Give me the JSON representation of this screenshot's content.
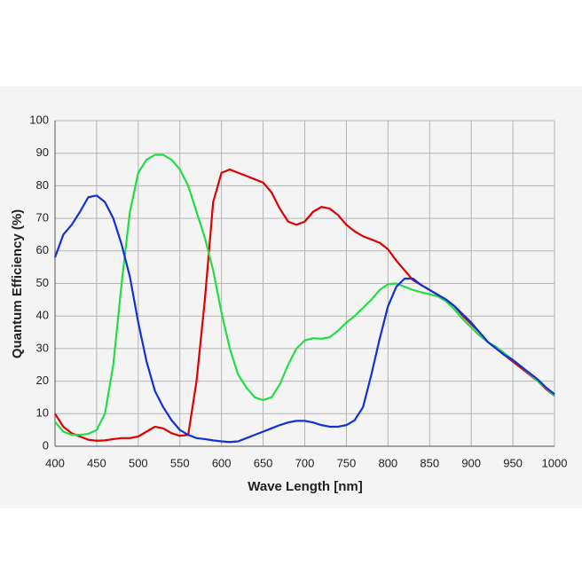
{
  "chart_data": {
    "type": "line",
    "xlabel": "Wave Length [nm]",
    "ylabel": "Quantum Efficiency (%)",
    "x": [
      400,
      410,
      420,
      430,
      440,
      450,
      460,
      470,
      480,
      490,
      500,
      510,
      520,
      530,
      540,
      550,
      560,
      570,
      580,
      590,
      600,
      610,
      620,
      630,
      640,
      650,
      660,
      670,
      680,
      690,
      700,
      710,
      720,
      730,
      740,
      750,
      760,
      770,
      780,
      790,
      800,
      810,
      820,
      830,
      840,
      850,
      860,
      870,
      880,
      890,
      900,
      910,
      920,
      930,
      940,
      950,
      960,
      970,
      980,
      990,
      1000
    ],
    "series": [
      {
        "color": "#e00000",
        "values": [
          10,
          6,
          4,
          3,
          2,
          1.7,
          1.8,
          2.2,
          2.5,
          2.5,
          3,
          4.5,
          6,
          5.5,
          4,
          3.2,
          3.5,
          20,
          45,
          75,
          84,
          85,
          84,
          83,
          82,
          81,
          78,
          73,
          69,
          68,
          69,
          72,
          73.5,
          73,
          71,
          68,
          66,
          64.5,
          63.5,
          62.5,
          60.5,
          57,
          54,
          51,
          49.5,
          48,
          46.5,
          45,
          43,
          40,
          37.5,
          35,
          32,
          30,
          28,
          26,
          24,
          22,
          20,
          17.5,
          15.5
        ]
      },
      {
        "color": "#22dd44",
        "values": [
          7.5,
          4.5,
          3.5,
          3.5,
          3.8,
          5,
          10,
          25,
          50,
          72,
          84,
          88,
          89.5,
          89.5,
          88,
          85,
          80,
          72,
          64,
          54,
          41,
          30,
          22,
          18,
          15,
          14.2,
          15,
          19,
          25,
          30,
          32.5,
          33.2,
          33,
          33.5,
          35.5,
          38,
          40,
          42.5,
          45,
          48,
          49.8,
          50,
          49,
          48,
          47.3,
          46.7,
          46,
          44.5,
          42,
          39,
          36.5,
          34,
          32,
          30.5,
          28.5,
          26.5,
          24.5,
          22.3,
          20,
          17.8,
          15.5
        ]
      },
      {
        "color": "#1030d8",
        "values": [
          58,
          65,
          68,
          72,
          76.5,
          77,
          75,
          70,
          62,
          52,
          38,
          26,
          17,
          12,
          8,
          5,
          3.5,
          2.5,
          2.2,
          1.8,
          1.5,
          1.3,
          1.5,
          2.5,
          3.5,
          4.5,
          5.5,
          6.5,
          7.3,
          7.8,
          7.8,
          7.3,
          6.5,
          6,
          6,
          6.5,
          8,
          12,
          22,
          33,
          43,
          49,
          51.5,
          51.5,
          49.5,
          48,
          46.5,
          45,
          43,
          40.5,
          38,
          35,
          32,
          30,
          28,
          26.5,
          24.5,
          22.5,
          20.5,
          18,
          16
        ]
      }
    ],
    "xlim": [
      400,
      1000
    ],
    "xticks": [
      400,
      450,
      500,
      550,
      600,
      650,
      700,
      750,
      800,
      850,
      900,
      950,
      1000
    ],
    "ylim": [
      0,
      100
    ],
    "yticks": [
      0,
      10,
      20,
      30,
      40,
      50,
      60,
      70,
      80,
      90,
      100
    ],
    "grid": true
  }
}
